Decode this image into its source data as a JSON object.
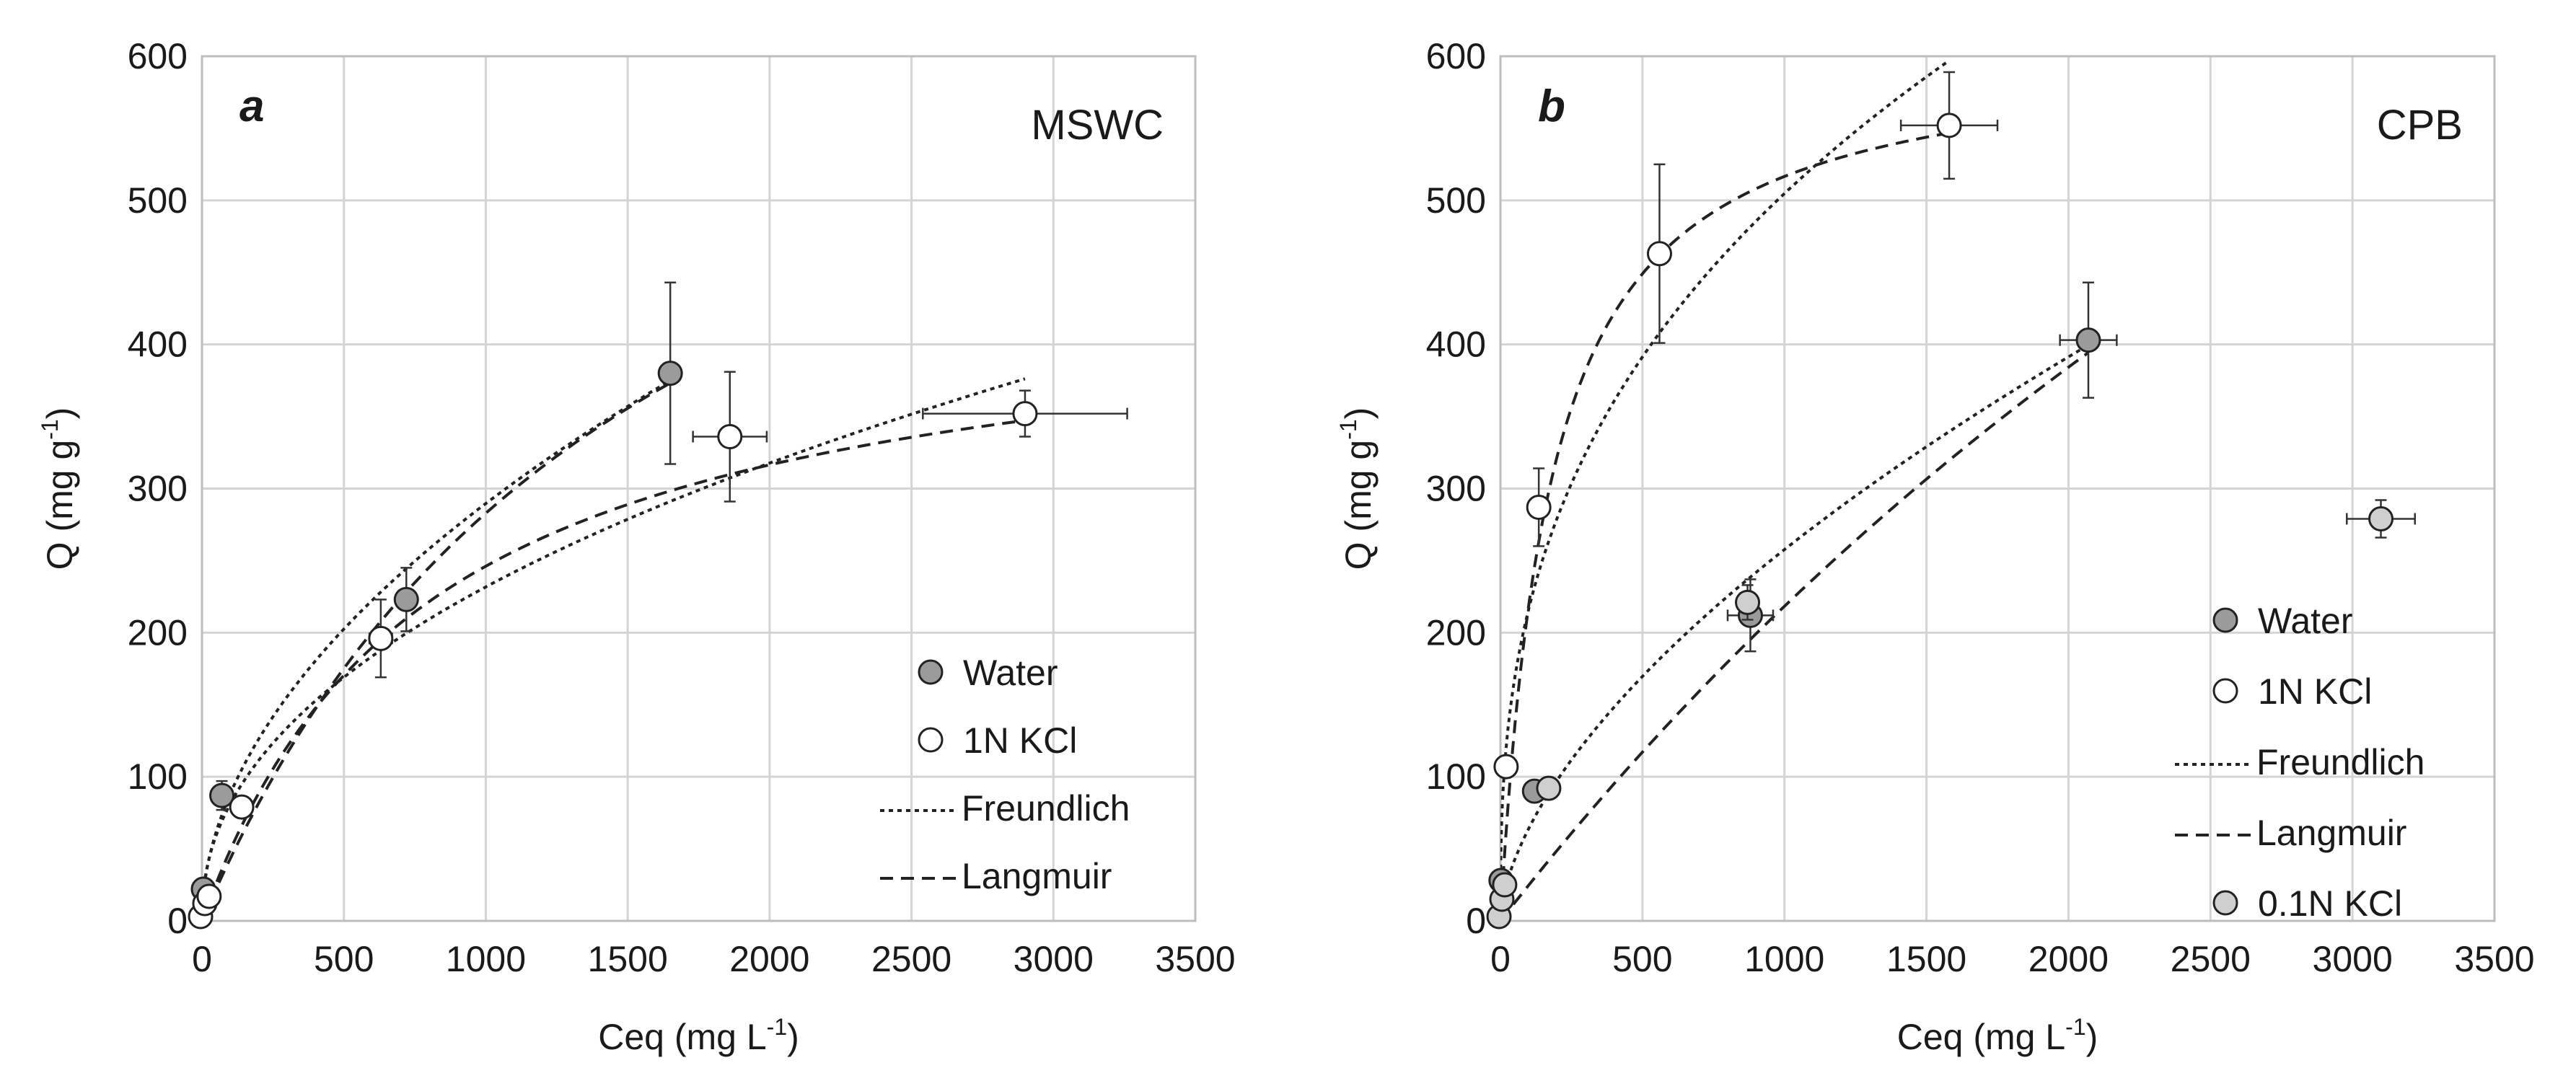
{
  "chart_data": [
    {
      "type": "scatter",
      "panel": "a",
      "title": "MSWC",
      "xlabel_prefix": "Ceq (mg L",
      "xlabel_sup": "-1",
      "xlabel_suffix": ")",
      "ylabel_prefix": "Q (mg g",
      "ylabel_sup": "-1",
      "ylabel_suffix": ")",
      "xlim": [
        0,
        3500
      ],
      "ylim": [
        0,
        600
      ],
      "xticks": [
        0,
        500,
        1000,
        1500,
        2000,
        2500,
        3000,
        3500
      ],
      "yticks": [
        0,
        100,
        200,
        300,
        400,
        500,
        600
      ],
      "grid": true,
      "legend_position": "bottom-right",
      "legend": [
        {
          "label": "Water",
          "kind": "marker",
          "fill": "#9b9b9b"
        },
        {
          "label": "1N KCl",
          "kind": "marker",
          "fill": "#ffffff"
        },
        {
          "label": "Freundlich",
          "kind": "freundlich"
        },
        {
          "label": "Langmuir",
          "kind": "langmuir"
        }
      ],
      "series": [
        {
          "name": "Water",
          "fill": "#9b9b9b",
          "points": [
            {
              "x": 5,
              "y": 22,
              "xerr": 0,
              "yerr": 3
            },
            {
              "x": 70,
              "y": 87,
              "xerr": 15,
              "yerr": 10
            },
            {
              "x": 720,
              "y": 223,
              "xerr": 0,
              "yerr": 22
            },
            {
              "x": 1650,
              "y": 380,
              "xerr": 0,
              "yerr": 63
            }
          ]
        },
        {
          "name": "1N KCl",
          "fill": "#ffffff",
          "points": [
            {
              "x": -5,
              "y": 3,
              "xerr": 0,
              "yerr": 0
            },
            {
              "x": 10,
              "y": 12,
              "xerr": 0,
              "yerr": 0
            },
            {
              "x": 25,
              "y": 17,
              "xerr": 0,
              "yerr": 0
            },
            {
              "x": 140,
              "y": 79,
              "xerr": 0,
              "yerr": 5
            },
            {
              "x": 630,
              "y": 196,
              "xerr": 40,
              "yerr": 27
            },
            {
              "x": 1860,
              "y": 336,
              "xerr": 130,
              "yerr": 45
            },
            {
              "x": 2900,
              "y": 352,
              "xerr": 360,
              "yerr": 16
            }
          ]
        }
      ],
      "fits": [
        {
          "name": "Freundlich",
          "series": "Water",
          "model": "freundlich",
          "K": 8.2,
          "n": 0.516,
          "xmax": 1650
        },
        {
          "name": "Langmuir",
          "series": "Water",
          "model": "langmuir",
          "qmax": 734,
          "KL": 0.000627,
          "xmax": 1650
        },
        {
          "name": "Freundlich",
          "series": "1N KCl",
          "model": "freundlich",
          "K": 10.0,
          "n": 0.455,
          "xmax": 2900
        },
        {
          "name": "Langmuir",
          "series": "1N KCl",
          "model": "langmuir",
          "qmax": 443,
          "KL": 0.00125,
          "xmax": 2900
        }
      ]
    },
    {
      "type": "scatter",
      "panel": "b",
      "title": "CPB",
      "xlabel_prefix": "Ceq (mg L",
      "xlabel_sup": "-1",
      "xlabel_suffix": ")",
      "ylabel_prefix": "Q (mg g",
      "ylabel_sup": "-1",
      "ylabel_suffix": ")",
      "xlim": [
        0,
        3500
      ],
      "ylim": [
        0,
        600
      ],
      "xticks": [
        0,
        500,
        1000,
        1500,
        2000,
        2500,
        3000,
        3500
      ],
      "yticks": [
        0,
        100,
        200,
        300,
        400,
        500,
        600
      ],
      "grid": true,
      "legend_position": "bottom-right",
      "legend": [
        {
          "label": "Water",
          "kind": "marker",
          "fill": "#9b9b9b"
        },
        {
          "label": "1N KCl",
          "kind": "marker",
          "fill": "#ffffff"
        },
        {
          "label": "Freundlich",
          "kind": "freundlich"
        },
        {
          "label": "Langmuir",
          "kind": "langmuir"
        },
        {
          "label": "0.1N KCl",
          "kind": "marker",
          "fill": "#cfcfcf"
        }
      ],
      "series": [
        {
          "name": "Water",
          "fill": "#9b9b9b",
          "points": [
            {
              "x": 2,
              "y": 28,
              "xerr": 0,
              "yerr": 0
            },
            {
              "x": 120,
              "y": 90,
              "xerr": 20,
              "yerr": 0
            },
            {
              "x": 880,
              "y": 212,
              "xerr": 80,
              "yerr": 25
            },
            {
              "x": 2070,
              "y": 403,
              "xerr": 100,
              "yerr": 40
            }
          ]
        },
        {
          "name": "1N KCl",
          "fill": "#ffffff",
          "points": [
            {
              "x": 20,
              "y": 107,
              "xerr": 0,
              "yerr": 0
            },
            {
              "x": 135,
              "y": 287,
              "xerr": 0,
              "yerr": 27
            },
            {
              "x": 560,
              "y": 463,
              "xerr": 0,
              "yerr": 62
            },
            {
              "x": 1580,
              "y": 552,
              "xerr": 170,
              "yerr": 37
            }
          ]
        },
        {
          "name": "0.1N KCl",
          "fill": "#cfcfcf",
          "points": [
            {
              "x": -5,
              "y": 3,
              "xerr": 0,
              "yerr": 0
            },
            {
              "x": 5,
              "y": 15,
              "xerr": 0,
              "yerr": 0
            },
            {
              "x": 15,
              "y": 25,
              "xerr": 0,
              "yerr": 0
            },
            {
              "x": 170,
              "y": 92,
              "xerr": 0,
              "yerr": 0
            },
            {
              "x": 870,
              "y": 221,
              "xerr": 0,
              "yerr": 12
            },
            {
              "x": 3100,
              "y": 279,
              "xerr": 120,
              "yerr": 13
            }
          ]
        }
      ],
      "fits": [
        {
          "name": "Freundlich",
          "series": "Water",
          "model": "freundlich",
          "K": 4.0,
          "n": 0.603,
          "xmax": 2070
        },
        {
          "name": "Langmuir",
          "series": "Water",
          "model": "langmuir",
          "qmax": 1600,
          "KL": 0.000158,
          "xmax": 2070
        },
        {
          "name": "Freundlich",
          "series": "1N KCl",
          "model": "freundlich",
          "K": 40.0,
          "n": 0.367,
          "xmax": 1580
        },
        {
          "name": "Langmuir",
          "series": "1N KCl",
          "model": "langmuir",
          "qmax": 608,
          "KL": 0.00565,
          "xmax": 1580
        }
      ]
    }
  ]
}
